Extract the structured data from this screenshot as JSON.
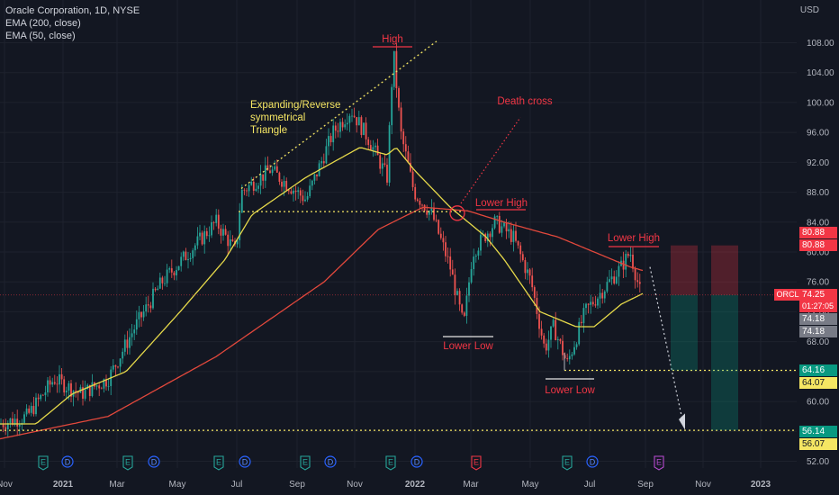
{
  "legend": {
    "title": "Oracle Corporation, 1D, NYSE",
    "ema200": "EMA (200, close)",
    "ema50": "EMA (50, close)"
  },
  "currency": "USD",
  "symbol": "ORCL",
  "colors": {
    "background": "#131722",
    "grid": "#1e222d",
    "up": "#26a69a",
    "down": "#ef5350",
    "ema50": "#e6d94a",
    "ema200": "#e2483c",
    "annotation_red": "#f23645",
    "annotation_yellow": "#f5e663"
  },
  "annotations": {
    "high": "High",
    "triangle_line1": "Expanding/Reverse",
    "triangle_line2": "symmetrical",
    "triangle_line3": "Triangle",
    "death_cross": "Death cross",
    "lower_high_1": "Lower High",
    "lower_high_2": "Lower High",
    "lower_low_1": "Lower Low",
    "lower_low_2": "Lower Low"
  },
  "price_tags": {
    "stop_a": "80.88",
    "stop_b": "80.88",
    "last": "74.25",
    "countdown": "01:27:05",
    "p1": "74.18",
    "p2": "74.18",
    "target1_a": "64.16",
    "target1_b": "64.07",
    "target2_a": "56.14",
    "target2_b": "56.07"
  },
  "chart_data": {
    "type": "candlestick",
    "title": "Oracle Corporation, 1D, NYSE",
    "yaxis_ticks": [
      "108.00",
      "104.00",
      "100.00",
      "96.00",
      "92.00",
      "88.00",
      "84.00",
      "80.00",
      "76.00",
      "72.00",
      "68.00",
      "64.00",
      "60.00",
      "56.00",
      "52.00"
    ],
    "ylim": [
      51,
      110
    ],
    "xaxis_ticks": [
      "Nov",
      "2021",
      "Mar",
      "May",
      "Jul",
      "Sep",
      "Nov",
      "2022",
      "Mar",
      "May",
      "Jul",
      "Sep",
      "Nov",
      "2023"
    ],
    "series": [
      {
        "name": "EMA (200, close)",
        "approx_path": [
          [
            0,
            55
          ],
          [
            120,
            58
          ],
          [
            240,
            66
          ],
          [
            360,
            76
          ],
          [
            420,
            83
          ],
          [
            470,
            86
          ],
          [
            520,
            85.5
          ],
          [
            560,
            84
          ],
          [
            620,
            82
          ],
          [
            700,
            78
          ],
          [
            715,
            77.5
          ]
        ]
      },
      {
        "name": "EMA (50, close)",
        "approx_path": [
          [
            0,
            57
          ],
          [
            40,
            57
          ],
          [
            80,
            61
          ],
          [
            140,
            64
          ],
          [
            200,
            72
          ],
          [
            250,
            79
          ],
          [
            280,
            85
          ],
          [
            340,
            90
          ],
          [
            400,
            94
          ],
          [
            430,
            93
          ],
          [
            440,
            94
          ],
          [
            460,
            91
          ],
          [
            500,
            86
          ],
          [
            540,
            82
          ],
          [
            560,
            79
          ],
          [
            600,
            72
          ],
          [
            640,
            70
          ],
          [
            660,
            70
          ],
          [
            690,
            73
          ],
          [
            715,
            74.5
          ]
        ]
      },
      {
        "name": "price",
        "approx_path": [
          [
            0,
            57
          ],
          [
            30,
            58
          ],
          [
            60,
            63
          ],
          [
            90,
            61
          ],
          [
            120,
            63
          ],
          [
            150,
            70
          ],
          [
            180,
            76
          ],
          [
            210,
            80
          ],
          [
            240,
            84
          ],
          [
            262,
            80
          ],
          [
            268,
            88
          ],
          [
            300,
            91
          ],
          [
            340,
            87
          ],
          [
            370,
            96
          ],
          [
            390,
            99
          ],
          [
            410,
            95
          ],
          [
            430,
            90
          ],
          [
            437,
            107
          ],
          [
            445,
            96
          ],
          [
            460,
            88
          ],
          [
            480,
            85
          ],
          [
            500,
            78
          ],
          [
            515,
            70
          ],
          [
            525,
            80
          ],
          [
            550,
            84
          ],
          [
            570,
            82
          ],
          [
            590,
            76
          ],
          [
            605,
            67
          ],
          [
            615,
            70
          ],
          [
            630,
            65
          ],
          [
            650,
            72
          ],
          [
            670,
            75
          ],
          [
            690,
            78
          ],
          [
            700,
            80
          ],
          [
            712,
            74.2
          ]
        ]
      }
    ],
    "levels": [
      85.4,
      64.16,
      56.14,
      74.25
    ]
  }
}
